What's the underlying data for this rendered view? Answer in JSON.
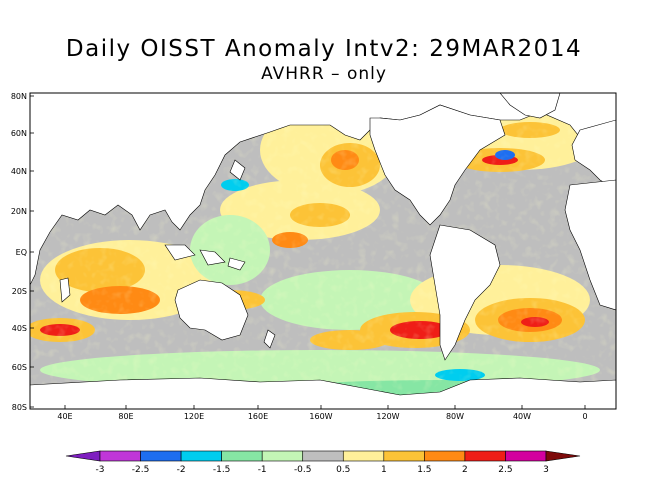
{
  "title": "Daily OISST Anomaly Intv2: 29MAR2014",
  "subtitle": "AVHRR – only",
  "map": {
    "lon_labels": [
      "40E",
      "80E",
      "120E",
      "160E",
      "160W",
      "120W",
      "80W",
      "40W",
      "0"
    ],
    "lat_labels": [
      "80N",
      "60N",
      "40N",
      "20N",
      "EQ",
      "20S",
      "40S",
      "60S",
      "80S"
    ],
    "land_color": "#ffffff",
    "neutral_color": "#bebebe",
    "coast_color": "#000000"
  },
  "colorbar": {
    "labels": [
      "-3",
      "-2.5",
      "-2",
      "-1.5",
      "-1",
      "-0.5",
      "0.5",
      "1",
      "1.5",
      "2",
      "2.5",
      "3"
    ],
    "colors": [
      "#7e1ec0",
      "#c036d8",
      "#1e6ef0",
      "#00cdef",
      "#86e6a4",
      "#c4f5b6",
      "#bebebe",
      "#fff09a",
      "#fcc337",
      "#ff8a14",
      "#ef1e17",
      "#d3009e",
      "#7d0a0a"
    ]
  }
}
